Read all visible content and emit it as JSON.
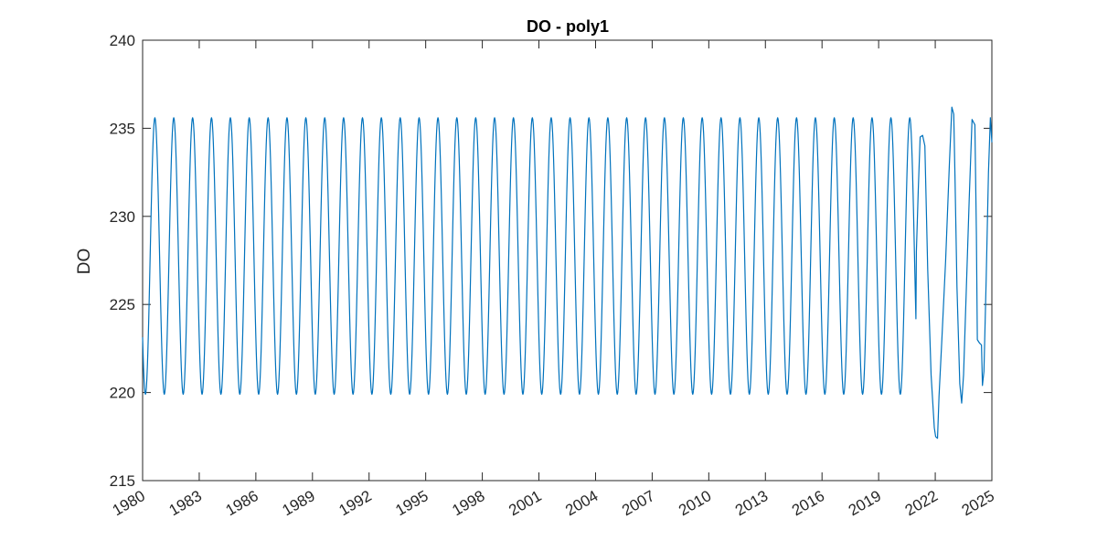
{
  "chart_data": {
    "type": "line",
    "title": "DO - poly1",
    "xlabel": "",
    "ylabel": "DO",
    "xlim": [
      1980,
      2025
    ],
    "ylim": [
      215,
      240
    ],
    "x_ticks": [
      "1980",
      "1983",
      "1986",
      "1989",
      "1992",
      "1995",
      "1998",
      "2001",
      "2004",
      "2007",
      "2010",
      "2013",
      "2016",
      "2019",
      "2022",
      "2025"
    ],
    "y_ticks": [
      "215",
      "220",
      "225",
      "230",
      "235",
      "240"
    ],
    "grid": false,
    "series": [
      {
        "color": "#0072BD",
        "pattern": {
          "description": "annual seasonal cycle, 1980-2021",
          "min": 219.9,
          "max": 235.6,
          "min_month_fraction": 0.15,
          "max_month_fraction": 0.65
        },
        "points": [
          [
            1980.0,
            222.3
          ],
          [
            1980.1,
            220.2
          ],
          [
            1980.16,
            219.9
          ],
          [
            1980.3,
            222.5
          ],
          [
            1980.45,
            229.0
          ],
          [
            1980.58,
            234.5
          ],
          [
            1980.66,
            235.6
          ],
          [
            2021.0,
            228.0
          ],
          [
            2021.1,
            231.5
          ],
          [
            2021.2,
            234.5
          ],
          [
            2021.33,
            234.6
          ],
          [
            2021.45,
            234.0
          ],
          [
            2021.6,
            227.0
          ],
          [
            2021.78,
            221.0
          ],
          [
            2021.95,
            218.0
          ],
          [
            2022.02,
            217.5
          ],
          [
            2022.12,
            217.4
          ],
          [
            2022.2,
            219.8
          ],
          [
            2022.35,
            223.0
          ],
          [
            2022.55,
            227.5
          ],
          [
            2022.75,
            233.0
          ],
          [
            2022.88,
            236.2
          ],
          [
            2022.98,
            235.8
          ],
          [
            2023.05,
            232.0
          ],
          [
            2023.15,
            226.0
          ],
          [
            2023.3,
            220.5
          ],
          [
            2023.4,
            219.4
          ],
          [
            2023.5,
            221.0
          ],
          [
            2023.65,
            226.0
          ],
          [
            2023.8,
            231.0
          ],
          [
            2023.95,
            235.5
          ],
          [
            2024.1,
            235.2
          ],
          [
            2024.18,
            229.0
          ],
          [
            2024.23,
            223.0
          ],
          [
            2024.35,
            222.8
          ],
          [
            2024.45,
            222.7
          ],
          [
            2024.5,
            220.4
          ],
          [
            2024.58,
            221.2
          ],
          [
            2024.7,
            226.5
          ],
          [
            2024.82,
            232.5
          ],
          [
            2024.92,
            235.6
          ],
          [
            2025.0,
            234.2
          ]
        ]
      }
    ]
  }
}
